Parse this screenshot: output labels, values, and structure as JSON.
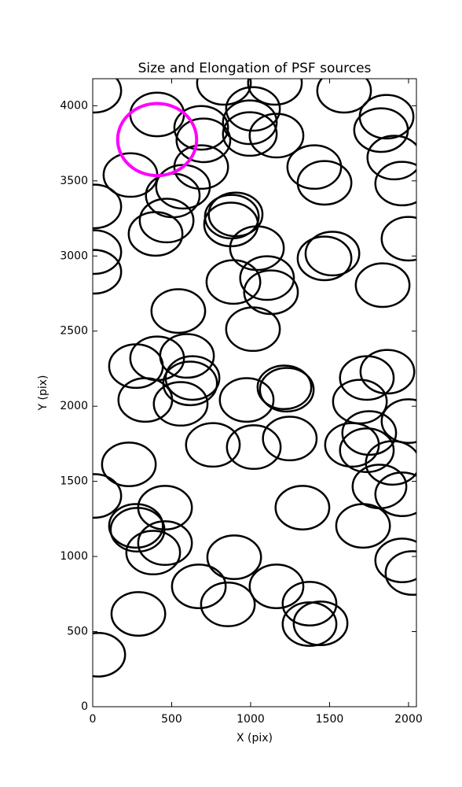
{
  "chart_data": {
    "type": "ellipse",
    "title": "Size and Elongation of PSF sources",
    "xlabel": "X (pix)",
    "ylabel": "Y (pix)",
    "xlim": [
      0,
      2050
    ],
    "ylim": [
      0,
      4180
    ],
    "xticks": [
      0,
      500,
      1000,
      1500,
      2000
    ],
    "yticks": [
      0,
      500,
      1000,
      1500,
      2000,
      2500,
      3000,
      3500,
      4000
    ],
    "series": [
      {
        "color": "#000000",
        "width": 340,
        "height": 290,
        "x": [
          10,
          408,
          687,
          701,
          831,
          1015,
          995,
          995,
          1164,
          1154,
          1592,
          1861,
          1826,
          1910,
          1960,
          239,
          687,
          572,
          507,
          10,
          468,
          398,
          881,
          905,
          876,
          1403,
          1468,
          1040,
          1518,
          1468,
          2000,
          10,
          10,
          891,
          1104,
          1129,
          1836,
          542,
          1015,
          274,
          408,
          597,
          632,
          617,
          333,
          557,
          975,
          1214,
          1229,
          1736,
          1866,
          1692,
          2000,
          761,
          1020,
          1248,
          1642,
          1751,
          1736,
          1900,
          229,
          10,
          1960,
          1816,
          1328,
          458,
          274,
          284,
          1712,
          458,
          383,
          896,
          1960,
          2025,
          672,
          1164,
          1373,
          856,
          289,
          1373,
          1443,
          35
        ],
        "y": [
          4100,
          3942,
          3853,
          3770,
          4152,
          3979,
          3890,
          3812,
          3801,
          4152,
          4100,
          3927,
          3838,
          3655,
          3482,
          3539,
          3592,
          3461,
          3403,
          3330,
          3236,
          3147,
          3262,
          3277,
          3210,
          3592,
          3487,
          3052,
          3016,
          2984,
          3115,
          3026,
          2895,
          2827,
          2853,
          2759,
          2806,
          2634,
          2513,
          2267,
          2319,
          2335,
          2188,
          2152,
          2042,
          2016,
          2042,
          2126,
          2110,
          2188,
          2230,
          2031,
          1901,
          1743,
          1728,
          1785,
          1743,
          1822,
          1707,
          1623,
          1613,
          1403,
          1414,
          1466,
          1325,
          1325,
          1204,
          1178,
          1204,
          1089,
          1026,
          995,
          974,
          890,
          801,
          801,
          686,
          681,
          618,
          550,
          555,
          346
        ]
      },
      {
        "color": "#ff00ff",
        "width": 500,
        "height": 480,
        "x": [
          408
        ],
        "y": [
          3775
        ]
      }
    ]
  }
}
